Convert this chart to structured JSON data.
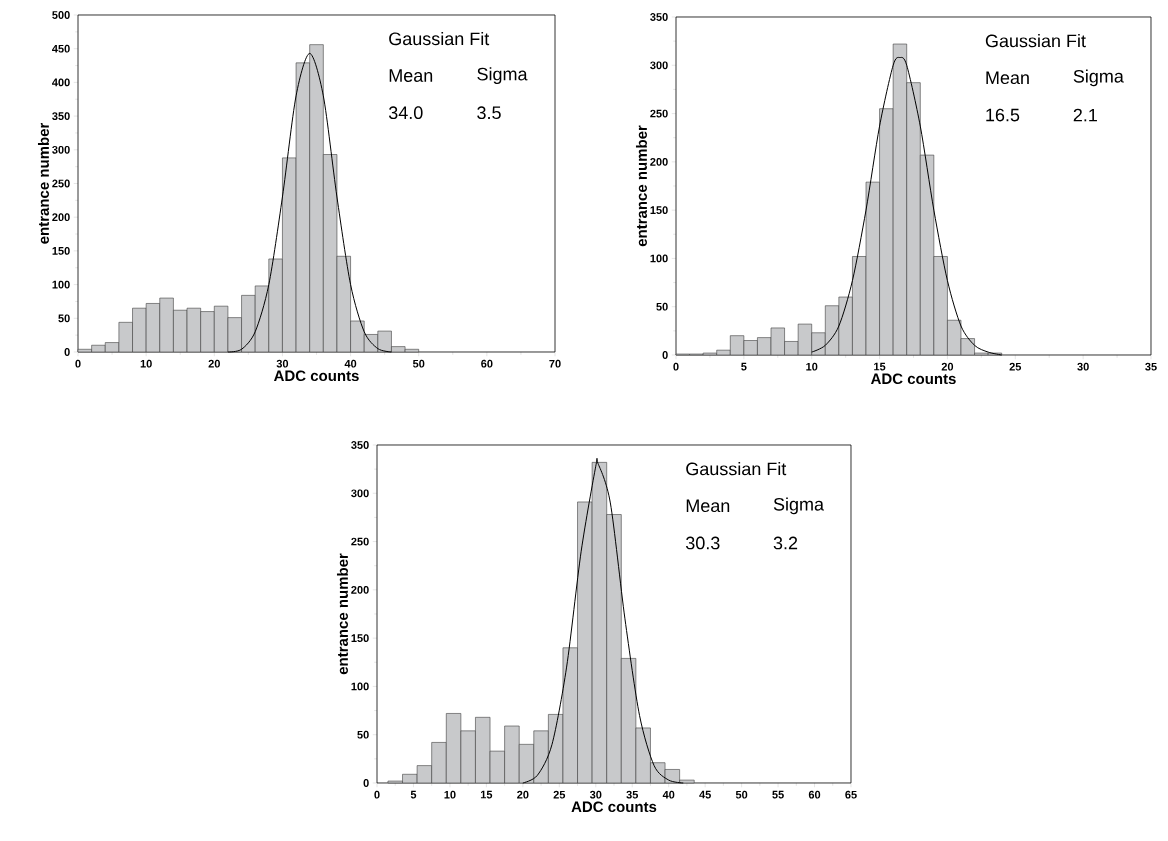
{
  "chart_data": [
    {
      "type": "histogram",
      "xlabel": "ADC counts",
      "ylabel": "entrance number",
      "color": "#c8c9cb",
      "bins": [
        0,
        2,
        4,
        6,
        8,
        10,
        12,
        14,
        16,
        18,
        20,
        22,
        24,
        26,
        28,
        30,
        32,
        34,
        36,
        38,
        40,
        42,
        44,
        46,
        48,
        50
      ],
      "values": [
        4,
        10,
        14,
        44,
        65,
        72,
        80,
        62,
        65,
        60,
        68,
        51,
        84,
        98,
        138,
        288,
        429,
        456,
        293,
        142,
        46,
        26,
        31,
        8,
        4
      ],
      "series": [
        {
          "type": "line",
          "color": "#000000",
          "x": [
            22,
            24,
            26,
            28,
            30,
            32,
            34,
            36,
            38,
            40,
            42,
            44,
            46
          ],
          "values": [
            0,
            4,
            30,
            100,
            230,
            380,
            443,
            380,
            230,
            100,
            30,
            5,
            0
          ]
        }
      ],
      "xlim": [
        0,
        70
      ],
      "ylim": [
        0,
        500
      ],
      "xticks": [
        0,
        10,
        20,
        30,
        40,
        50,
        60,
        70
      ],
      "yticks": [
        0,
        50,
        100,
        150,
        200,
        250,
        300,
        350,
        400,
        450,
        500
      ],
      "annotations": [
        "Gaussian Fit",
        "Mean",
        "Sigma",
        "34.0",
        "3.5"
      ]
    },
    {
      "type": "histogram",
      "xlabel": "ADC counts",
      "ylabel": "entrance number",
      "color": "#c8c9cb",
      "bins": [
        0,
        1,
        2,
        3,
        4,
        5,
        6,
        7,
        8,
        9,
        10,
        11,
        12,
        13,
        14,
        15,
        16,
        17,
        18,
        19,
        20,
        21,
        22,
        23,
        24
      ],
      "values": [
        1,
        1,
        2,
        5,
        20,
        15,
        18,
        28,
        14,
        32,
        23,
        51,
        60,
        102,
        179,
        255,
        322,
        282,
        207,
        102,
        36,
        17,
        2,
        2
      ],
      "series": [
        {
          "type": "line",
          "color": "#000000",
          "x": [
            10,
            11,
            12,
            13,
            14,
            15,
            16,
            16.5,
            17,
            18,
            19,
            20,
            21,
            22,
            23,
            24
          ],
          "values": [
            3,
            10,
            30,
            77,
            150,
            237,
            300,
            308,
            300,
            237,
            150,
            77,
            30,
            10,
            3,
            0
          ]
        }
      ],
      "xlim": [
        0,
        35
      ],
      "ylim": [
        0,
        350
      ],
      "xticks": [
        0,
        5,
        10,
        15,
        20,
        25,
        30,
        35
      ],
      "yticks": [
        0,
        50,
        100,
        150,
        200,
        250,
        300,
        350
      ],
      "annotations": [
        "Gaussian Fit",
        "Mean",
        "Sigma",
        "16.5",
        "2.1"
      ]
    },
    {
      "type": "histogram",
      "xlabel": "ADC counts",
      "ylabel": "entrance number",
      "color": "#c8c9cb",
      "bins": [
        1.5,
        3.5,
        5.5,
        7.5,
        9.5,
        11.5,
        13.5,
        15.5,
        17.5,
        19.5,
        21.5,
        23.5,
        25.5,
        27.5,
        29.5,
        31.5,
        33.5,
        35.5,
        37.5,
        39.5,
        41.5,
        43.5
      ],
      "values": [
        2,
        9,
        18,
        42,
        72,
        54,
        68,
        33,
        59,
        40,
        54,
        71,
        140,
        291,
        332,
        278,
        129,
        57,
        21,
        14,
        3
      ],
      "series": [
        {
          "type": "line",
          "color": "#000000",
          "x": [
            20,
            22,
            24,
            26,
            28,
            30,
            30.3,
            32,
            34,
            36,
            38,
            40,
            42
          ],
          "values": [
            0,
            8,
            40,
            120,
            240,
            328,
            331,
            290,
            170,
            70,
            18,
            3,
            0
          ]
        }
      ],
      "xlim": [
        0,
        65
      ],
      "ylim": [
        0,
        350
      ],
      "xticks": [
        0,
        5,
        10,
        15,
        20,
        25,
        30,
        35,
        40,
        45,
        50,
        55,
        60,
        65
      ],
      "yticks": [
        0,
        50,
        100,
        150,
        200,
        250,
        300,
        350
      ],
      "annotations": [
        "Gaussian Fit",
        "Mean",
        "Sigma",
        "30.3",
        "3.2"
      ]
    }
  ]
}
